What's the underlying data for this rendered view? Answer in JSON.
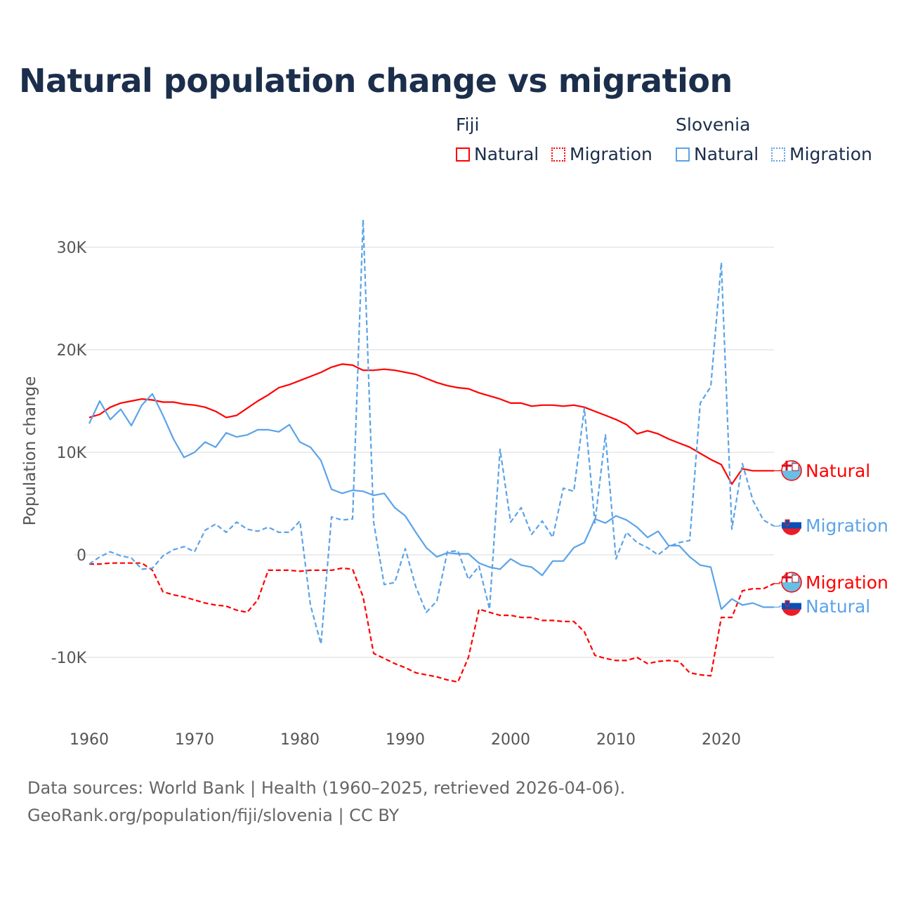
{
  "title": "Natural population change vs migration",
  "legend": {
    "groups": [
      {
        "name": "Fiji",
        "items": [
          "Natural",
          "Migration"
        ],
        "color": "#ff0000"
      },
      {
        "name": "Slovenia",
        "items": [
          "Natural",
          "Migration"
        ],
        "color": "#5ba3e8"
      }
    ]
  },
  "footer": {
    "line1": "Data sources: World Bank | Health (1960–2025, retrieved 2026-04-06).",
    "line2": "GeoRank.org/population/fiji/slovenia | CC BY"
  },
  "chart_data": {
    "type": "line",
    "title": "Natural population change vs migration",
    "xlabel": "",
    "ylabel": "Population change",
    "xlim": [
      1960,
      2025
    ],
    "ylim": [
      -15000,
      33000
    ],
    "x_ticks": [
      1960,
      1970,
      1980,
      1990,
      2000,
      2010,
      2020
    ],
    "x_tick_labels": [
      "1960",
      "1970",
      "1980",
      "1990",
      "2000",
      "2010",
      "2020"
    ],
    "y_ticks": [
      -10000,
      0,
      10000,
      20000,
      30000
    ],
    "y_tick_labels": [
      "-10K",
      "0",
      "10K",
      "20K",
      "30K"
    ],
    "grid": true,
    "legend_placement": "top-right",
    "x_start": 1960,
    "series": [
      {
        "name": "Fiji Natural",
        "country": "Fiji",
        "end_label": "Natural",
        "color": "#ff0000",
        "dashed": false,
        "values": [
          13400,
          13700,
          14400,
          14800,
          15000,
          15200,
          15100,
          14900,
          14900,
          14700,
          14600,
          14400,
          14000,
          13400,
          13600,
          14300,
          15000,
          15600,
          16300,
          16600,
          17000,
          17400,
          17800,
          18300,
          18600,
          18500,
          18000,
          18000,
          18100,
          18000,
          17800,
          17600,
          17200,
          16800,
          16500,
          16300,
          16200,
          15800,
          15500,
          15200,
          14800,
          14800,
          14500,
          14600,
          14600,
          14500,
          14600,
          14400,
          14000,
          13600,
          13200,
          12700,
          11800,
          12100,
          11800,
          11300,
          10900,
          10500,
          9900,
          9300,
          8800,
          6900,
          8400,
          8200,
          8200,
          8200
        ]
      },
      {
        "name": "Fiji Migration",
        "country": "Fiji",
        "end_label": "Migration",
        "color": "#ff0000",
        "dashed": true,
        "values": [
          -900,
          -900,
          -800,
          -800,
          -800,
          -800,
          -1500,
          -3600,
          -3900,
          -4100,
          -4400,
          -4700,
          -4900,
          -5000,
          -5400,
          -5600,
          -4400,
          -1500,
          -1500,
          -1500,
          -1600,
          -1500,
          -1500,
          -1500,
          -1300,
          -1400,
          -4100,
          -9600,
          -10100,
          -10600,
          -11000,
          -11500,
          -11700,
          -11900,
          -12200,
          -12400,
          -10000,
          -5300,
          -5600,
          -5900,
          -5900,
          -6100,
          -6100,
          -6400,
          -6400,
          -6500,
          -6500,
          -7500,
          -9800,
          -10100,
          -10300,
          -10300,
          -10000,
          -10600,
          -10400,
          -10300,
          -10400,
          -11500,
          -11700,
          -11800,
          -6100,
          -6100,
          -3500,
          -3300,
          -3300,
          -2800
        ]
      },
      {
        "name": "Slovenia Natural",
        "country": "Slovenia",
        "end_label": "Natural",
        "color": "#5ba3e8",
        "dashed": false,
        "values": [
          12800,
          15000,
          13200,
          14200,
          12600,
          14600,
          15700,
          13600,
          11300,
          9500,
          10000,
          11000,
          10500,
          11900,
          11500,
          11700,
          12200,
          12200,
          12000,
          12700,
          11000,
          10500,
          9200,
          6400,
          6000,
          6300,
          6200,
          5800,
          6000,
          4600,
          3800,
          2200,
          700,
          -200,
          200,
          100,
          100,
          -800,
          -1200,
          -1400,
          -400,
          -1000,
          -1200,
          -2000,
          -600,
          -600,
          700,
          1200,
          3500,
          3100,
          3800,
          3400,
          2700,
          1700,
          2300,
          900,
          900,
          -200,
          -1000,
          -1200,
          -5300,
          -4300,
          -4900,
          -4700,
          -5100,
          -5100
        ]
      },
      {
        "name": "Slovenia Migration",
        "country": "Slovenia",
        "end_label": "Migration",
        "color": "#5ba3e8",
        "dashed": true,
        "values": [
          -900,
          -200,
          300,
          -100,
          -300,
          -1400,
          -1300,
          -100,
          500,
          800,
          300,
          2400,
          3000,
          2200,
          3200,
          2500,
          2300,
          2700,
          2200,
          2200,
          3300,
          -4900,
          -8700,
          3700,
          3400,
          3500,
          32700,
          3200,
          -2900,
          -2700,
          600,
          -3100,
          -5600,
          -4500,
          300,
          400,
          -2400,
          -1100,
          -5300,
          10300,
          3200,
          4600,
          2000,
          3300,
          1700,
          6500,
          6200,
          14300,
          3100,
          11700,
          -400,
          2200,
          1200,
          700,
          0,
          800,
          1200,
          1400,
          14800,
          16400,
          28500,
          2500,
          8900,
          5300,
          3400,
          2800
        ]
      }
    ]
  }
}
